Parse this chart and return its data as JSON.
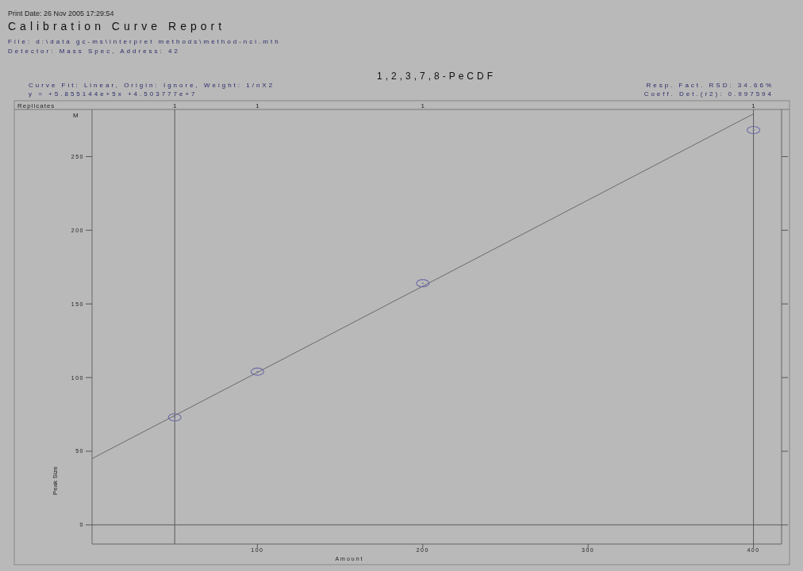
{
  "chart_data": {
    "type": "scatter",
    "title": "Calibration Curve Report",
    "subtitle": "1,2,3,7,8-PeCDF",
    "xlabel": "Amount",
    "ylabel": "Peak Size",
    "annotations": [
      "Print Date: 26 Nov 2005 17:29:54",
      "File: d:\\data gc-ms\\interpret methods\\method-nci.mth",
      "Detector: Mass Spec, Address: 42",
      "Curve Fit: Linear, Origin: Ignore, Weight: 1/nX2",
      "y = +5.855144e+5x +4.503777e+7",
      "Resp. Fact. RSD: 34.66%",
      "Coeff. Det.(r2): 0.997594",
      "Replicates",
      "M",
      "1",
      "1",
      "1",
      "1"
    ],
    "series": [
      {
        "color": "#6e6ea8",
        "x": [
          50,
          100,
          200,
          400
        ],
        "values": [
          73,
          104,
          164,
          268
        ],
        "marker": "circle"
      },
      {
        "type": "line",
        "color": "#6a6a6a",
        "x": [
          0,
          400
        ],
        "values": [
          45,
          279
        ],
        "line_style": "solid",
        "marker": "none"
      }
    ],
    "xlim": [
      0,
      417
    ],
    "xticks": [
      100,
      200,
      300,
      400
    ],
    "ylim": [
      -13,
      282
    ],
    "yticks": [
      0,
      50,
      100,
      150,
      200,
      250
    ],
    "ref_lines": [
      {
        "axis": "x",
        "value": 50,
        "color": "#5a5a5a"
      },
      {
        "axis": "x",
        "value": 400,
        "color": "#5a5a5a"
      },
      {
        "axis": "y",
        "value": 0,
        "color": "#5a5a5a"
      }
    ],
    "grid": false
  }
}
